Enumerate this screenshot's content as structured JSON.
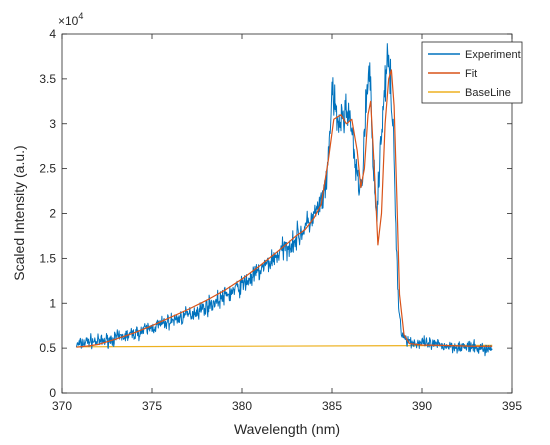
{
  "chart_data": {
    "type": "line",
    "xlabel": "Wavelength (nm)",
    "ylabel": "Scaled Intensity (a.u.)",
    "y_exponent_label": "×10",
    "y_exponent_power": "4",
    "xlim": [
      370,
      395
    ],
    "ylim": [
      0,
      40000
    ],
    "x_ticks": [
      370,
      375,
      380,
      385,
      390,
      395
    ],
    "x_tick_labels": [
      "370",
      "375",
      "380",
      "385",
      "390",
      "395"
    ],
    "y_ticks": [
      0,
      5000,
      10000,
      15000,
      20000,
      25000,
      30000,
      35000,
      40000
    ],
    "y_tick_labels": [
      "0",
      "0.5",
      "1",
      "1.5",
      "2",
      "2.5",
      "3",
      "3.5",
      "4"
    ],
    "grid": false,
    "legend_position": "top-right",
    "series": [
      {
        "name": "Experiment",
        "color": "#0072BD",
        "noisy": true,
        "x": [
          370.8,
          371.5,
          372,
          373,
          374,
          375,
          376,
          377,
          378,
          379,
          380,
          381,
          381.8,
          382.5,
          383,
          383.5,
          384,
          384.3,
          384.7,
          385,
          385.3,
          385.6,
          385.9,
          386.1,
          386.3,
          386.5,
          386.7,
          386.9,
          387.1,
          387.3,
          387.5,
          387.7,
          387.9,
          388.1,
          388.25,
          388.4,
          388.55,
          388.7,
          388.9,
          389.2,
          389.5,
          390,
          391,
          392,
          393,
          393.9
        ],
        "y": [
          5300,
          5800,
          5700,
          6100,
          6600,
          7300,
          8000,
          8700,
          9600,
          10700,
          12000,
          13600,
          15100,
          16300,
          17200,
          18400,
          19700,
          20700,
          22800,
          33500,
          30000,
          30500,
          32000,
          29000,
          25000,
          22800,
          24000,
          33000,
          35500,
          26000,
          19500,
          28000,
          33500,
          37000,
          34500,
          29000,
          19000,
          9500,
          6500,
          5900,
          5600,
          5500,
          5300,
          5200,
          5000,
          4900
        ]
      },
      {
        "name": "Fit",
        "color": "#D95319",
        "noisy": false,
        "x": [
          370.8,
          371.5,
          372,
          373,
          374,
          375,
          376,
          377,
          378,
          379,
          380,
          381,
          382,
          382.6,
          383,
          383.5,
          384,
          384.4,
          384.8,
          385.1,
          385.5,
          385.8,
          386.1,
          386.4,
          386.6,
          386.8,
          387,
          387.15,
          387.35,
          387.55,
          387.75,
          387.95,
          388.15,
          388.3,
          388.45,
          388.6,
          388.75,
          389,
          389.3,
          390,
          391,
          392,
          393,
          393.9
        ],
        "y": [
          5100,
          5250,
          5400,
          6000,
          6700,
          7500,
          8400,
          9300,
          10300,
          11400,
          12700,
          14200,
          15800,
          16800,
          17500,
          18200,
          19500,
          21000,
          26000,
          30500,
          31000,
          30000,
          30500,
          27000,
          22900,
          25000,
          31000,
          32500,
          25000,
          16500,
          20000,
          30000,
          35000,
          36000,
          32000,
          22000,
          11000,
          6500,
          5500,
          5350,
          5300,
          5250,
          5200,
          5200
        ]
      },
      {
        "name": "BaseLine",
        "color": "#EDB120",
        "noisy": false,
        "x": [
          370.8,
          393.9
        ],
        "y": [
          5150,
          5300
        ]
      }
    ]
  }
}
